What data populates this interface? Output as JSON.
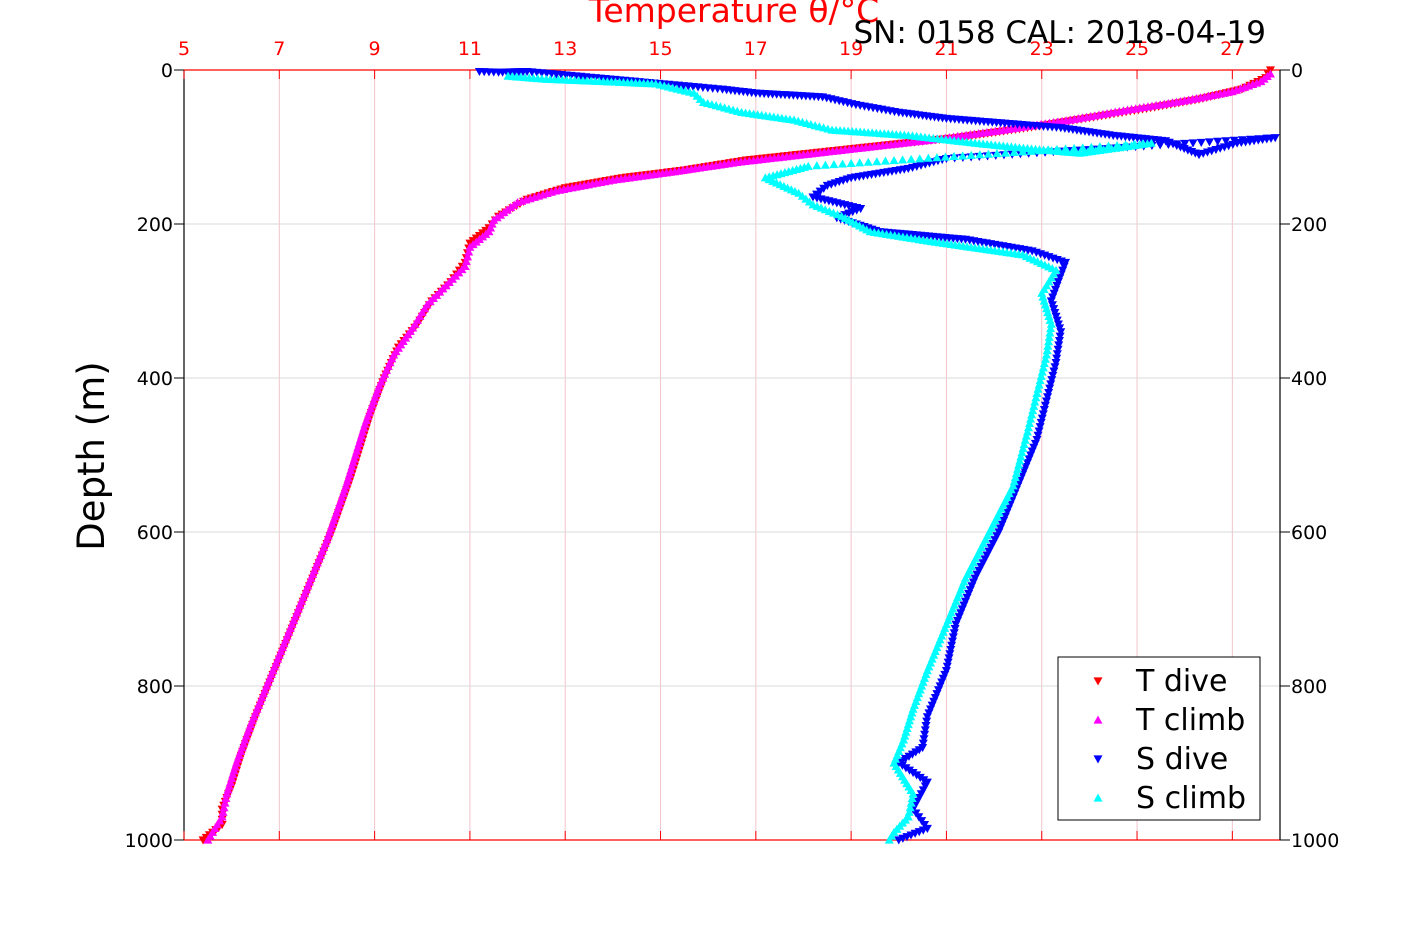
{
  "header": {
    "serial_text": "SN: 0158  CAL: 2018-04-19"
  },
  "chart_data": {
    "type": "scatter",
    "title": "Temperature θ/°C",
    "xlabel": "Temperature θ/°C",
    "ylabel": "Depth (m)",
    "xlim": [
      5,
      28
    ],
    "ylim": [
      0,
      1000
    ],
    "y_inverted": true,
    "x_ticks": [
      5,
      7,
      9,
      11,
      13,
      15,
      17,
      19,
      21,
      23,
      25,
      27
    ],
    "y_ticks": [
      0,
      200,
      400,
      600,
      800,
      1000
    ],
    "grid": true,
    "legend_position": "bottom-right",
    "colors": {
      "axis_top": "#ff0000",
      "axis_left": "#000000",
      "grid_x": "#f2c4cc",
      "grid_y": "#d9d9d9"
    },
    "series": [
      {
        "name": "T dive",
        "color": "#ff0000",
        "marker": "triangle-down",
        "points": [
          [
            27.8,
            0
          ],
          [
            27.7,
            10
          ],
          [
            27.2,
            25
          ],
          [
            26.3,
            38
          ],
          [
            25.2,
            50
          ],
          [
            24.0,
            62
          ],
          [
            22.7,
            75
          ],
          [
            21.2,
            88
          ],
          [
            19.8,
            97
          ],
          [
            18.3,
            107
          ],
          [
            16.8,
            117
          ],
          [
            15.5,
            130
          ],
          [
            14.2,
            140
          ],
          [
            13.0,
            153
          ],
          [
            12.2,
            168
          ],
          [
            11.6,
            190
          ],
          [
            11.4,
            205
          ],
          [
            11.0,
            225
          ],
          [
            10.9,
            250
          ],
          [
            10.6,
            275
          ],
          [
            10.2,
            300
          ],
          [
            9.9,
            330
          ],
          [
            9.5,
            360
          ],
          [
            9.2,
            400
          ],
          [
            8.9,
            450
          ],
          [
            8.5,
            530
          ],
          [
            8.1,
            600
          ],
          [
            7.7,
            660
          ],
          [
            7.3,
            720
          ],
          [
            6.9,
            780
          ],
          [
            6.5,
            840
          ],
          [
            6.2,
            890
          ],
          [
            6.0,
            930
          ],
          [
            5.8,
            960
          ],
          [
            5.8,
            980
          ],
          [
            5.4,
            1000
          ]
        ]
      },
      {
        "name": "T climb",
        "color": "#ff00ff",
        "marker": "triangle-up",
        "points": [
          [
            27.8,
            5
          ],
          [
            27.6,
            15
          ],
          [
            27.0,
            28
          ],
          [
            26.0,
            40
          ],
          [
            24.8,
            52
          ],
          [
            23.6,
            65
          ],
          [
            22.2,
            78
          ],
          [
            20.8,
            90
          ],
          [
            19.4,
            100
          ],
          [
            18.0,
            110
          ],
          [
            16.6,
            120
          ],
          [
            15.3,
            132
          ],
          [
            14.0,
            143
          ],
          [
            12.8,
            157
          ],
          [
            12.0,
            172
          ],
          [
            11.5,
            195
          ],
          [
            11.4,
            210
          ],
          [
            11.0,
            230
          ],
          [
            10.9,
            255
          ],
          [
            10.5,
            280
          ],
          [
            10.1,
            305
          ],
          [
            9.8,
            335
          ],
          [
            9.4,
            370
          ],
          [
            9.1,
            410
          ],
          [
            8.8,
            460
          ],
          [
            8.4,
            540
          ],
          [
            8.0,
            610
          ],
          [
            7.6,
            670
          ],
          [
            7.2,
            730
          ],
          [
            6.8,
            790
          ],
          [
            6.4,
            850
          ],
          [
            6.1,
            900
          ],
          [
            5.9,
            940
          ],
          [
            5.8,
            970
          ],
          [
            5.6,
            990
          ],
          [
            5.5,
            1000
          ]
        ]
      },
      {
        "name": "S dive",
        "color": "#0000ff",
        "marker": "triangle-down",
        "points": [
          [
            11.2,
            2
          ],
          [
            11.6,
            3
          ],
          [
            12.2,
            2
          ],
          [
            16.3,
            25
          ],
          [
            17.0,
            30
          ],
          [
            18.4,
            35
          ],
          [
            19.1,
            45
          ],
          [
            20.0,
            55
          ],
          [
            21.0,
            63
          ],
          [
            22.4,
            70
          ],
          [
            23.4,
            75
          ],
          [
            24.5,
            85
          ],
          [
            25.6,
            92
          ],
          [
            26.3,
            110
          ],
          [
            27.1,
            95
          ],
          [
            27.9,
            88
          ],
          [
            21.0,
            115
          ],
          [
            20.2,
            128
          ],
          [
            19.0,
            140
          ],
          [
            18.5,
            150
          ],
          [
            18.2,
            165
          ],
          [
            19.2,
            180
          ],
          [
            18.7,
            192
          ],
          [
            19.6,
            210
          ],
          [
            21.4,
            220
          ],
          [
            22.8,
            235
          ],
          [
            23.5,
            250
          ],
          [
            23.2,
            300
          ],
          [
            23.4,
            340
          ],
          [
            23.3,
            380
          ],
          [
            23.1,
            430
          ],
          [
            22.9,
            480
          ],
          [
            22.5,
            540
          ],
          [
            22.1,
            600
          ],
          [
            21.6,
            660
          ],
          [
            21.2,
            720
          ],
          [
            21.0,
            780
          ],
          [
            20.6,
            840
          ],
          [
            20.5,
            880
          ],
          [
            20.0,
            900
          ],
          [
            20.6,
            925
          ],
          [
            20.3,
            960
          ],
          [
            20.6,
            985
          ],
          [
            20.0,
            1000
          ]
        ]
      },
      {
        "name": "S climb",
        "color": "#00ffff",
        "marker": "triangle-up",
        "points": [
          [
            11.8,
            8
          ],
          [
            12.6,
            12
          ],
          [
            13.8,
            15
          ],
          [
            14.9,
            18
          ],
          [
            15.7,
            30
          ],
          [
            15.9,
            42
          ],
          [
            16.7,
            55
          ],
          [
            17.8,
            65
          ],
          [
            18.6,
            78
          ],
          [
            20.2,
            85
          ],
          [
            21.6,
            95
          ],
          [
            22.7,
            102
          ],
          [
            23.8,
            108
          ],
          [
            25.3,
            95
          ],
          [
            18.1,
            125
          ],
          [
            17.2,
            140
          ],
          [
            17.9,
            160
          ],
          [
            18.2,
            175
          ],
          [
            18.8,
            190
          ],
          [
            19.4,
            210
          ],
          [
            20.6,
            222
          ],
          [
            22.6,
            240
          ],
          [
            23.3,
            260
          ],
          [
            23.0,
            290
          ],
          [
            23.2,
            330
          ],
          [
            23.1,
            370
          ],
          [
            22.9,
            420
          ],
          [
            22.7,
            470
          ],
          [
            22.4,
            540
          ],
          [
            21.9,
            600
          ],
          [
            21.4,
            660
          ],
          [
            21.0,
            720
          ],
          [
            20.6,
            780
          ],
          [
            20.3,
            830
          ],
          [
            20.1,
            870
          ],
          [
            19.9,
            900
          ],
          [
            20.3,
            940
          ],
          [
            20.2,
            970
          ],
          [
            19.9,
            990
          ],
          [
            19.8,
            1000
          ]
        ]
      }
    ]
  }
}
